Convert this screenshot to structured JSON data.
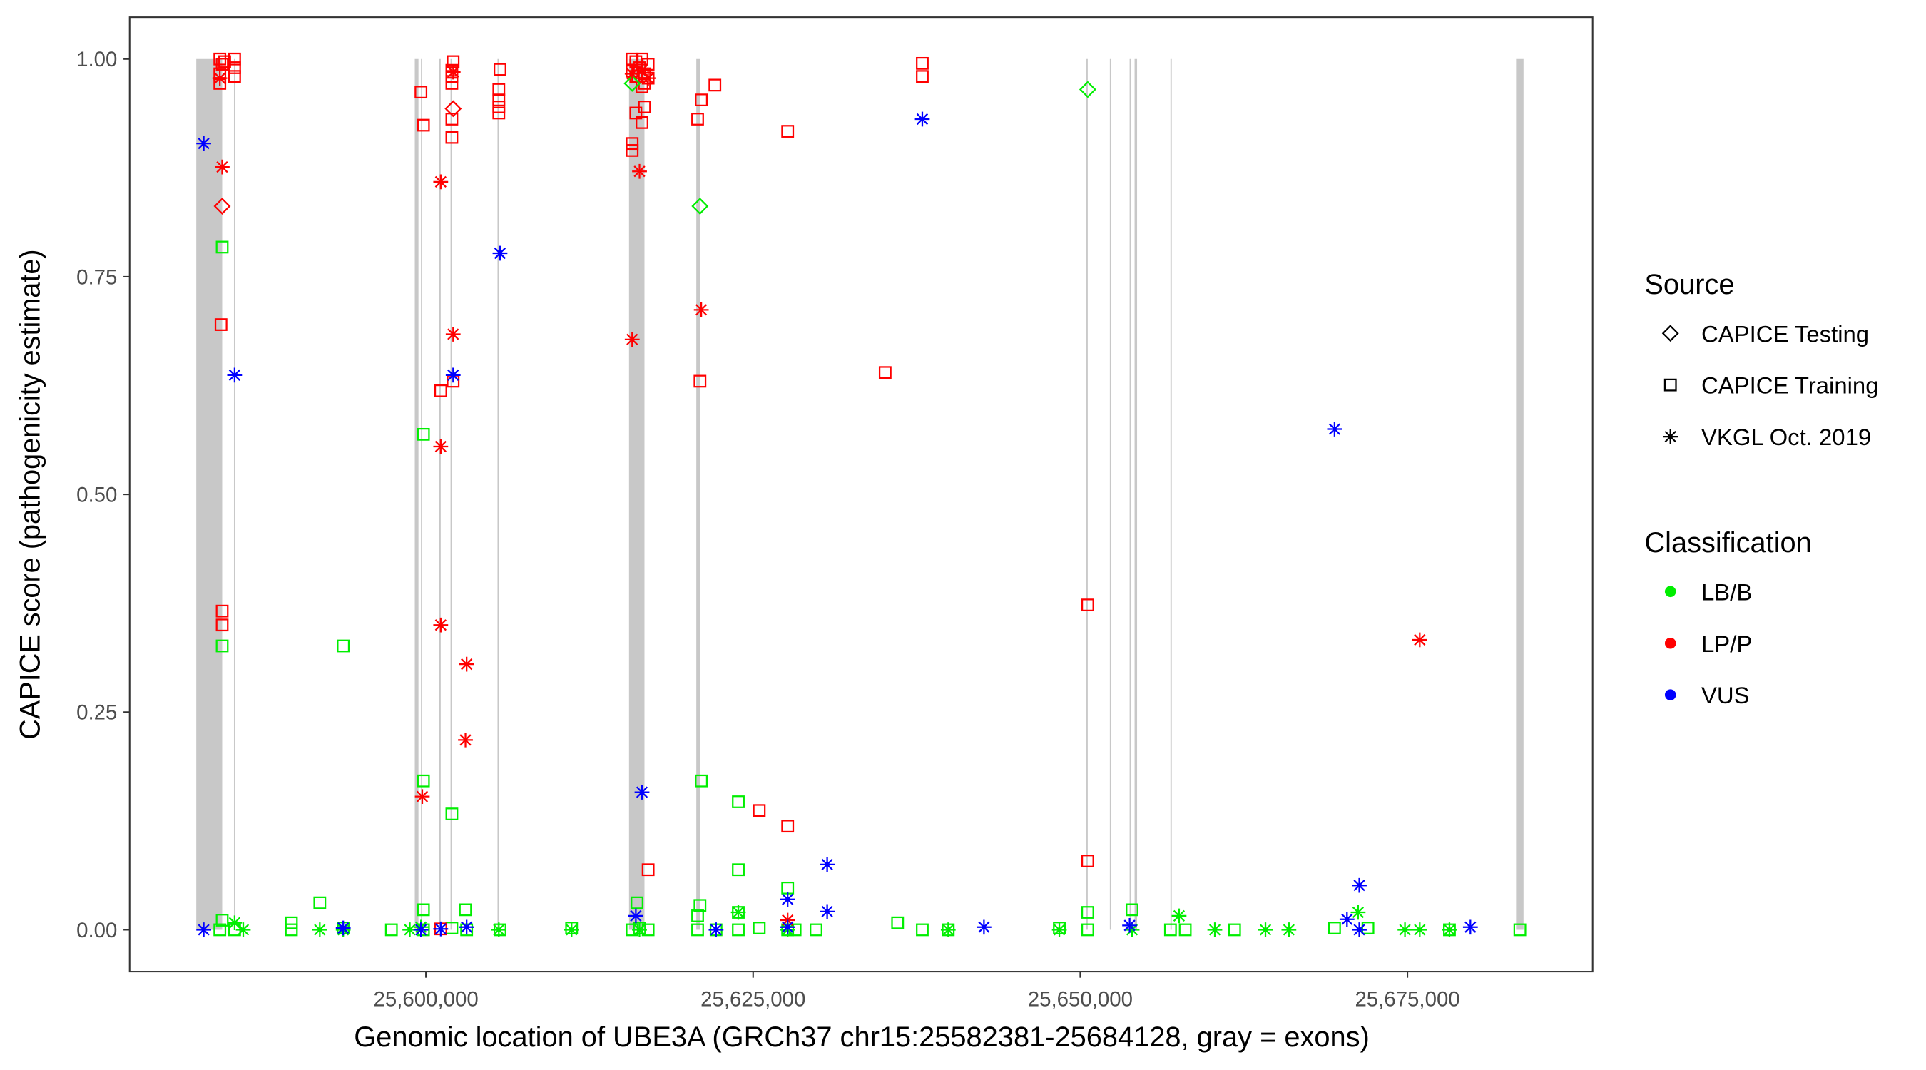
{
  "chart_data": {
    "type": "scatter",
    "xlabel": "Genomic location of UBE3A (GRCh37 chr15:25582381-25684128, gray = exons)",
    "ylabel": "CAPICE score (pathogenicity estimate)",
    "xticks": [
      25600000,
      25625000,
      25650000,
      25675000
    ],
    "xtick_labels": [
      "25,600,000",
      "25,625,000",
      "25,650,000",
      "25,675,000"
    ],
    "yticks": [
      0,
      0.25,
      0.5,
      0.75,
      1
    ],
    "ytick_labels": [
      "0.00",
      "0.25",
      "0.50",
      "0.75",
      "1.00"
    ],
    "ylim": [
      -0.05,
      1.05
    ],
    "xlim": [
      25577000,
      25688700
    ],
    "grid": false,
    "legend_placement": "right",
    "exon_color": "#c8c8c8",
    "exons": [
      [
        25582450,
        25584430
      ],
      [
        25585330,
        25585430
      ],
      [
        25599150,
        25599430
      ],
      [
        25599620,
        25599720
      ],
      [
        25601030,
        25601130
      ],
      [
        25601880,
        25601980
      ],
      [
        25605470,
        25605570
      ],
      [
        25615520,
        25616700
      ],
      [
        25620660,
        25620940
      ],
      [
        25650470,
        25650570
      ],
      [
        25652260,
        25652360
      ],
      [
        25653770,
        25653870
      ],
      [
        25654150,
        25654340
      ],
      [
        25656890,
        25656990
      ],
      [
        25683300,
        25683870
      ]
    ],
    "legend": {
      "source": {
        "title": "Source",
        "entries": [
          {
            "label": "CAPICE Testing",
            "shape": "diamond"
          },
          {
            "label": "CAPICE Training",
            "shape": "square"
          },
          {
            "label": "VKGL Oct. 2019",
            "shape": "asterisk"
          }
        ]
      },
      "classification": {
        "title": "Classification",
        "entries": [
          {
            "label": "LB/B",
            "color": "#00ee00"
          },
          {
            "label": "LP/P",
            "color": "#ff0000"
          },
          {
            "label": "VUS",
            "color": "#0000ff"
          }
        ]
      }
    },
    "series": [
      {
        "source": "CAPICE Training",
        "classification": "LB/B",
        "points": [
          [
            25584430,
            0.784
          ],
          [
            25584430,
            0.326
          ],
          [
            25593680,
            0.326
          ],
          [
            25599810,
            0.569
          ],
          [
            25599810,
            0.171
          ],
          [
            25601980,
            0.133
          ],
          [
            25621040,
            0.171
          ],
          [
            25623870,
            0.147
          ],
          [
            25623870,
            0.069
          ],
          [
            25627640,
            0.048
          ],
          [
            25591890,
            0.031
          ],
          [
            25599810,
            0.023
          ],
          [
            25603020,
            0.023
          ],
          [
            25616130,
            0.031
          ],
          [
            25620940,
            0.028
          ],
          [
            25623870,
            0.02
          ],
          [
            25650570,
            0.02
          ],
          [
            25653960,
            0.023
          ],
          [
            25636040,
            0.008
          ],
          [
            25589720,
            0.008
          ],
          [
            25620760,
            0.016
          ],
          [
            25584430,
            0.011
          ],
          [
            25584250,
            0
          ],
          [
            25585380,
            0
          ],
          [
            25589720,
            0
          ],
          [
            25593680,
            0.002
          ],
          [
            25597360,
            0
          ],
          [
            25599810,
            0
          ],
          [
            25601980,
            0.002
          ],
          [
            25603110,
            0
          ],
          [
            25605660,
            0
          ],
          [
            25611130,
            0.002
          ],
          [
            25615760,
            0
          ],
          [
            25616320,
            0.002
          ],
          [
            25616980,
            0
          ],
          [
            25620760,
            0
          ],
          [
            25622170,
            0
          ],
          [
            25623870,
            0
          ],
          [
            25625470,
            0.002
          ],
          [
            25627640,
            0
          ],
          [
            25628210,
            0
          ],
          [
            25629810,
            0
          ],
          [
            25637930,
            0
          ],
          [
            25639910,
            0
          ],
          [
            25648400,
            0.002
          ],
          [
            25650570,
            0
          ],
          [
            25656890,
            0
          ],
          [
            25658020,
            0
          ],
          [
            25661790,
            0
          ],
          [
            25669430,
            0.002
          ],
          [
            25671980,
            0.002
          ],
          [
            25678210,
            0
          ],
          [
            25683590,
            0
          ]
        ]
      },
      {
        "source": "CAPICE Training",
        "classification": "LP/P",
        "points": [
          [
            25584250,
            1.0
          ],
          [
            25584430,
            0.994
          ],
          [
            25584250,
            0.983
          ],
          [
            25584250,
            0.972
          ],
          [
            25585380,
            1.0
          ],
          [
            25585380,
            0.99
          ],
          [
            25585380,
            0.98
          ],
          [
            25584620,
            0.997
          ],
          [
            25584340,
            0.695
          ],
          [
            25584430,
            0.366
          ],
          [
            25584430,
            0.35
          ],
          [
            25599620,
            0.962
          ],
          [
            25599810,
            0.924
          ],
          [
            25602080,
            0.997
          ],
          [
            25601980,
            0.987
          ],
          [
            25601980,
            0.98
          ],
          [
            25601980,
            0.972
          ],
          [
            25601980,
            0.931
          ],
          [
            25601980,
            0.91
          ],
          [
            25602080,
            0.63
          ],
          [
            25601130,
            0.619
          ],
          [
            25601130,
            0.001
          ],
          [
            25605660,
            0.988
          ],
          [
            25605570,
            0.965
          ],
          [
            25605570,
            0.953
          ],
          [
            25605570,
            0.945
          ],
          [
            25605570,
            0.938
          ],
          [
            25615760,
            1.0
          ],
          [
            25615760,
            0.986
          ],
          [
            25615760,
            0.903
          ],
          [
            25615760,
            0.895
          ],
          [
            25616040,
            0.997
          ],
          [
            25616040,
            0.98
          ],
          [
            25616040,
            0.938
          ],
          [
            25616320,
            0.99
          ],
          [
            25616510,
            1.0
          ],
          [
            25616510,
            0.968
          ],
          [
            25616510,
            0.927
          ],
          [
            25616700,
            0.983
          ],
          [
            25616700,
            0.972
          ],
          [
            25616700,
            0.945
          ],
          [
            25616980,
            0.994
          ],
          [
            25616980,
            0.978
          ],
          [
            25616980,
            0.069
          ],
          [
            25620760,
            0.931
          ],
          [
            25621040,
            0.953
          ],
          [
            25622080,
            0.97
          ],
          [
            25620940,
            0.63
          ],
          [
            25627640,
            0.917
          ],
          [
            25637930,
            0.995
          ],
          [
            25637930,
            0.98
          ],
          [
            25635090,
            0.64
          ],
          [
            25650570,
            0.373
          ],
          [
            25650570,
            0.079
          ],
          [
            25625470,
            0.137
          ],
          [
            25627640,
            0.119
          ]
        ]
      },
      {
        "source": "CAPICE Testing",
        "classification": "LP/P",
        "points": [
          [
            25584430,
            0.831
          ],
          [
            25602080,
            0.943
          ]
        ]
      },
      {
        "source": "CAPICE Testing",
        "classification": "LB/B",
        "points": [
          [
            25615760,
            0.972
          ],
          [
            25620940,
            0.831
          ],
          [
            25650570,
            0.965
          ]
        ]
      },
      {
        "source": "VKGL Oct. 2019",
        "classification": "LB/B",
        "points": [
          [
            25585380,
            0.008
          ],
          [
            25586040,
            0
          ],
          [
            25591890,
            0
          ],
          [
            25593680,
            0
          ],
          [
            25598770,
            0
          ],
          [
            25599620,
            0.003
          ],
          [
            25605570,
            0
          ],
          [
            25611130,
            0
          ],
          [
            25616320,
            0
          ],
          [
            25623870,
            0.02
          ],
          [
            25627640,
            0
          ],
          [
            25639910,
            0
          ],
          [
            25648400,
            0
          ],
          [
            25653960,
            0
          ],
          [
            25657550,
            0.016
          ],
          [
            25660280,
            0
          ],
          [
            25664150,
            0
          ],
          [
            25665940,
            0
          ],
          [
            25671230,
            0.02
          ],
          [
            25674810,
            0
          ],
          [
            25675940,
            0
          ],
          [
            25678210,
            0
          ]
        ]
      },
      {
        "source": "VKGL Oct. 2019",
        "classification": "LP/P",
        "points": [
          [
            25584250,
            0.978
          ],
          [
            25584430,
            0.876
          ],
          [
            25601130,
            0.859
          ],
          [
            25602080,
            0.985
          ],
          [
            25602080,
            0.684
          ],
          [
            25601130,
            0.555
          ],
          [
            25601130,
            0.35
          ],
          [
            25603110,
            0.305
          ],
          [
            25603020,
            0.218
          ],
          [
            25599720,
            0.153
          ],
          [
            25615760,
            0.983
          ],
          [
            25616510,
            0.987
          ],
          [
            25616980,
            0.978
          ],
          [
            25616320,
            0.871
          ],
          [
            25615760,
            0.678
          ],
          [
            25621040,
            0.712
          ],
          [
            25675940,
            0.333
          ],
          [
            25627640,
            0.011
          ]
        ]
      },
      {
        "source": "VKGL Oct. 2019",
        "classification": "VUS",
        "points": [
          [
            25583020,
            0.903
          ],
          [
            25585380,
            0.637
          ],
          [
            25602080,
            0.637
          ],
          [
            25605660,
            0.777
          ],
          [
            25616510,
            0.158
          ],
          [
            25637930,
            0.931
          ],
          [
            25669430,
            0.575
          ],
          [
            25630660,
            0.075
          ],
          [
            25671320,
            0.051
          ],
          [
            25627640,
            0.035
          ],
          [
            25630660,
            0.021
          ],
          [
            25616040,
            0.016
          ],
          [
            25670380,
            0.012
          ],
          [
            25653770,
            0.005
          ],
          [
            25583020,
            0
          ],
          [
            25593680,
            0.002
          ],
          [
            25599620,
            0
          ],
          [
            25601130,
            0.001
          ],
          [
            25603110,
            0.003
          ],
          [
            25622170,
            0
          ],
          [
            25627640,
            0.003
          ],
          [
            25642640,
            0.003
          ],
          [
            25671320,
            0
          ],
          [
            25679810,
            0.003
          ]
        ]
      }
    ]
  }
}
